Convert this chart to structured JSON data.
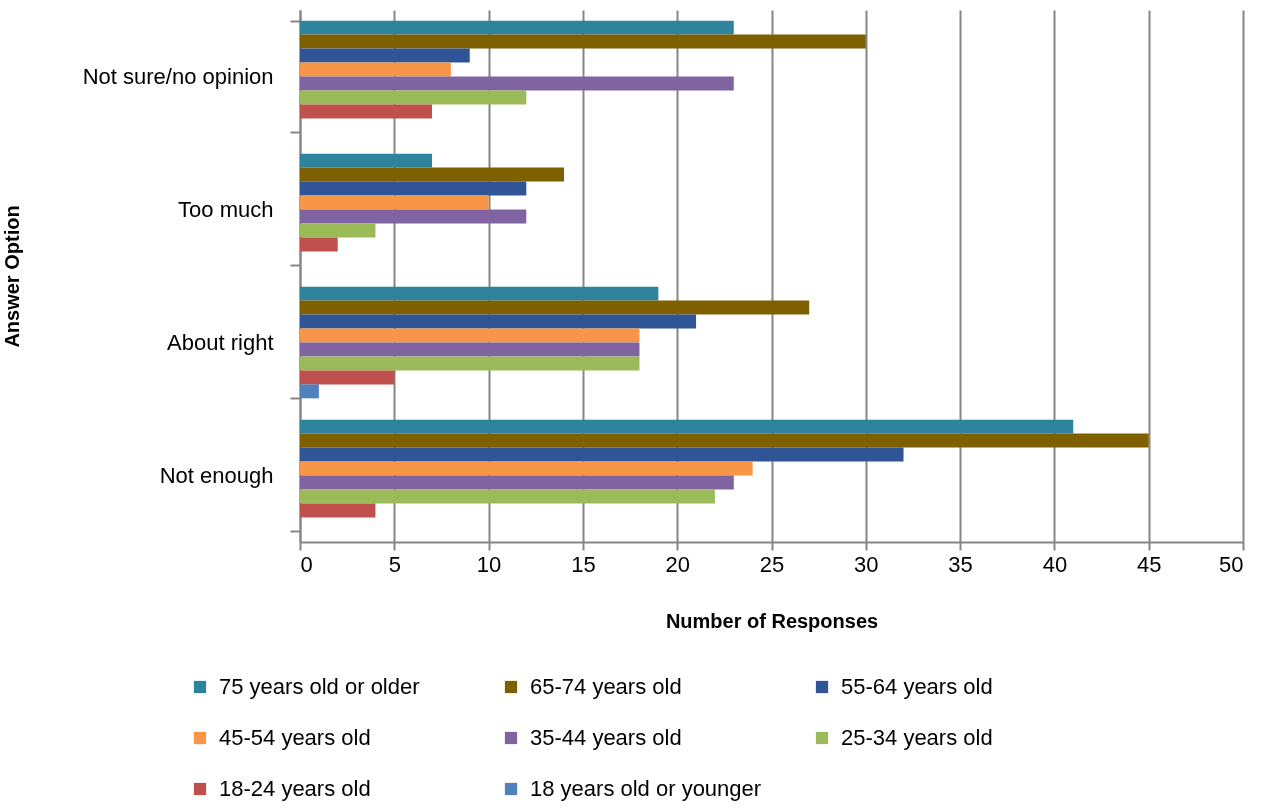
{
  "chart_data": {
    "type": "bar",
    "orientation": "horizontal",
    "xlabel": "Number of Responses",
    "ylabel": "Answer Option",
    "categories": [
      "Not sure/no opinion",
      "Too much",
      "About right",
      "Not enough"
    ],
    "series": [
      {
        "name": "75 years old or older",
        "color": "#2e849c",
        "values": [
          23,
          7,
          19,
          41
        ]
      },
      {
        "name": "65-74 years old",
        "color": "#7f6000",
        "values": [
          30,
          14,
          27,
          45
        ]
      },
      {
        "name": "55-64 years old",
        "color": "#2f5597",
        "values": [
          9,
          12,
          21,
          32
        ]
      },
      {
        "name": "45-54 years old",
        "color": "#f79646",
        "values": [
          8,
          10,
          18,
          24
        ]
      },
      {
        "name": "35-44 years old",
        "color": "#8064a2",
        "values": [
          23,
          12,
          18,
          23
        ]
      },
      {
        "name": "25-34 years old",
        "color": "#9bbb59",
        "values": [
          12,
          4,
          18,
          22
        ]
      },
      {
        "name": "18-24 years old",
        "color": "#c0504d",
        "values": [
          7,
          2,
          5,
          4
        ]
      },
      {
        "name": "18 years old or younger",
        "color": "#4f81bd",
        "values": [
          0,
          0,
          1,
          0
        ]
      }
    ],
    "xlim": [
      0,
      50
    ],
    "xticks": [
      0,
      5,
      10,
      15,
      20,
      25,
      30,
      35,
      40,
      45,
      50
    ],
    "grid": "x",
    "legend": "bottom"
  }
}
